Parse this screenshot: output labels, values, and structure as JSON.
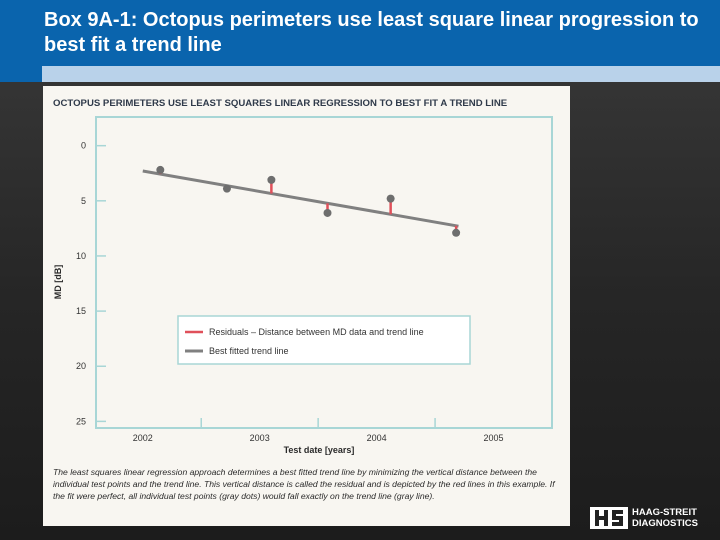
{
  "slide": {
    "title": "Box 9A-1: Octopus perimeters use least square linear progression to best fit a trend line"
  },
  "colors": {
    "title_bar": "#0a64ad",
    "title_strip": "#b9d2ea",
    "chart_frame": "#a8d6d6",
    "residual_line": "#e0505a",
    "trend_line": "#808080",
    "data_point": "#6e6e6e"
  },
  "chart_data": {
    "type": "scatter",
    "title": "OCTOPUS PERIMETERS USE LEAST SQUARES LINEAR REGRESSION TO BEST FIT A TREND LINE",
    "xlabel": "Test date [years]",
    "ylabel": "MD [dB]",
    "xlim": [
      2001.6,
      2005.5
    ],
    "ylim": [
      -2.6,
      25.6
    ],
    "y_inverted": true,
    "grid": false,
    "legend_position": "center-right",
    "x_ticks": [
      "2002",
      "2003",
      "2004",
      "2005"
    ],
    "x_tick_values": [
      2002,
      2003,
      2004,
      2005
    ],
    "y_ticks": [
      "0",
      "5",
      "10",
      "15",
      "20",
      "25"
    ],
    "y_tick_values": [
      0,
      5,
      10,
      15,
      20,
      25
    ],
    "points": {
      "x": [
        2002.15,
        2002.72,
        2003.1,
        2003.58,
        2004.12,
        2004.68
      ],
      "y": [
        2.2,
        3.9,
        3.1,
        6.1,
        4.8,
        7.9
      ]
    },
    "trend": {
      "x": [
        2002.0,
        2004.7
      ],
      "y": [
        2.3,
        7.3
      ]
    },
    "series": [
      {
        "name": "Residuals – Distance between MD data and trend line"
      },
      {
        "name": "Best fitted trend line"
      }
    ],
    "caption": "The least squares linear regression approach determines a best fitted trend line by minimizing the vertical distance between the individual test points and the trend line. This vertical distance is called the residual and is depicted by the red lines in this example. If the fit were perfect, all individual test points (gray dots) would fall exactly on the trend line (gray line)."
  },
  "logo": {
    "text": "HAAG-STREIT\nDIAGNOSTICS",
    "mark": "HS"
  }
}
